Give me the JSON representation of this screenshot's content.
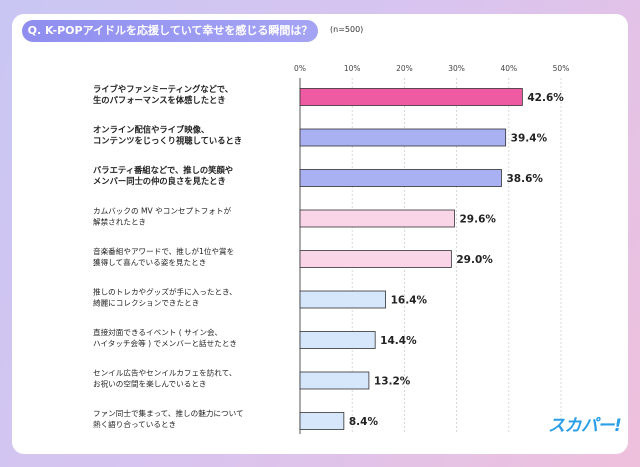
{
  "question": "Q. K-POPアイドルを応援していて幸せを感じる瞬間は？",
  "sample_size": "(n=500)",
  "logo_text": "スカパー!",
  "colors": {
    "top": "#ee5ba3",
    "second": "#aab1f2",
    "third": "#fad5e8",
    "rest": "#d6e6fb",
    "bar_stroke": "#333333",
    "pill": "#9a99f2"
  },
  "chart_data": {
    "type": "bar",
    "orientation": "horizontal",
    "title": "",
    "xlabel": "",
    "ylabel": "",
    "xlim": [
      0,
      50
    ],
    "ticks": [
      "0%",
      "10%",
      "20%",
      "30%",
      "40%",
      "50%"
    ],
    "categories": [
      [
        "ライブやファンミーティングなどで、",
        "生のパフォーマンスを体感したとき"
      ],
      [
        "オンライン配信やライブ映像、",
        "コンテンツをじっくり視聴しているとき"
      ],
      [
        "バラエティ番組などで、推しの笑顔や",
        "メンバー同士の仲の良さを見たとき"
      ],
      [
        "カムバックの MV やコンセプトフォトが",
        "解禁されたとき"
      ],
      [
        "音楽番組やアワードで、推しが1位や賞を",
        "獲得して喜んでいる姿を見たとき"
      ],
      [
        "推しのトレカやグッズが手に入ったとき、",
        "綺麗にコレクションできたとき"
      ],
      [
        "直接対面できるイベント ( サイン会、",
        "ハイタッチ会等 ) でメンバーと話せたとき"
      ],
      [
        "センイル広告やセンイルカフェを訪れて、",
        "お祝いの空間を楽しんでいるとき"
      ],
      [
        "ファン同士で集まって、推しの魅力について",
        "熱く語り合っているとき"
      ]
    ],
    "values": [
      42.6,
      39.4,
      38.6,
      29.6,
      29.0,
      16.4,
      14.4,
      13.2,
      8.4
    ],
    "value_labels": [
      "42.6%",
      "39.4%",
      "38.6%",
      "29.6%",
      "29.0%",
      "16.4%",
      "14.4%",
      "13.2%",
      "8.4%"
    ],
    "bold_rows": [
      0,
      1,
      2
    ],
    "grid": true,
    "legend": "none"
  }
}
